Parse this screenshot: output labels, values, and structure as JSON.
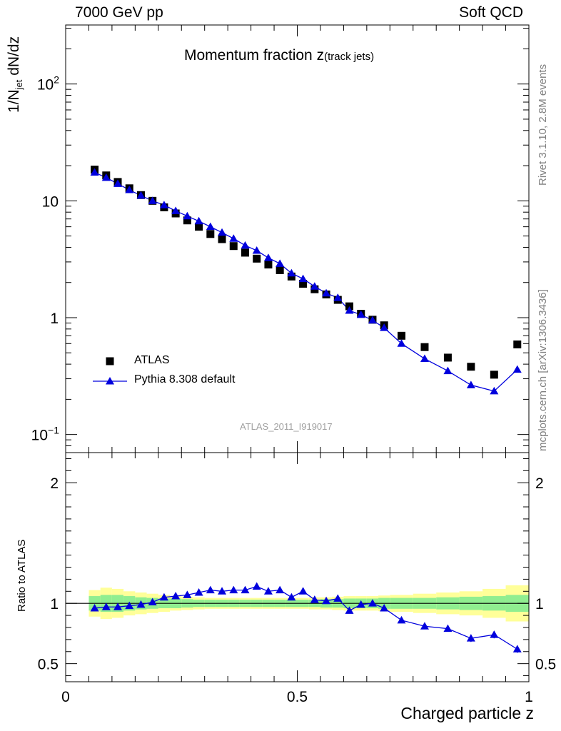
{
  "header": {
    "left": "7000 GeV pp",
    "right": "Soft QCD"
  },
  "side_labels": {
    "rivet": "Rivet 3.1.10,  2.8M events",
    "mcplots": "mcplots.cern.ch [arXiv:1306.3436]"
  },
  "analysis_id": "ATLAS_2011_I919017",
  "chart_data": [
    {
      "type": "scatter",
      "panel": "main",
      "title": "Momentum fraction z",
      "title_sub": "(track jets)",
      "ylabel": "1/N_jet dN/dz",
      "xlabel": "",
      "xlim": [
        0,
        1
      ],
      "ylim": [
        0.07,
        320
      ],
      "yscale": "log",
      "y_tick_labels": [
        "10^-1",
        "1",
        "10",
        "10^2"
      ],
      "legend_placement": "lower-left",
      "x": [
        0.0625,
        0.0875,
        0.1125,
        0.1375,
        0.1625,
        0.1875,
        0.2125,
        0.2375,
        0.2625,
        0.2875,
        0.3125,
        0.3375,
        0.3625,
        0.3875,
        0.4125,
        0.4375,
        0.4625,
        0.4875,
        0.5125,
        0.5375,
        0.5625,
        0.5875,
        0.6125,
        0.6375,
        0.6625,
        0.6875,
        0.725,
        0.775,
        0.825,
        0.875,
        0.925,
        0.975
      ],
      "series": [
        {
          "name": "ATLAS",
          "color": "#000000",
          "marker": "square",
          "values": [
            18.5,
            16.5,
            14.5,
            12.8,
            11.2,
            10.0,
            8.8,
            7.8,
            6.8,
            6.0,
            5.2,
            4.7,
            4.1,
            3.6,
            3.2,
            2.85,
            2.55,
            2.25,
            1.95,
            1.75,
            1.58,
            1.42,
            1.25,
            1.08,
            0.96,
            0.86,
            0.7,
            0.56,
            0.455,
            0.38,
            0.325,
            0.59
          ]
        },
        {
          "name": "Pythia 8.308 default",
          "color": "#0000dd",
          "marker": "triangle",
          "values": [
            17.5,
            15.8,
            14.0,
            12.4,
            11.1,
            10.0,
            9.2,
            8.2,
            7.4,
            6.7,
            6.0,
            5.35,
            4.75,
            4.15,
            3.75,
            3.25,
            2.9,
            2.4,
            2.15,
            1.85,
            1.62,
            1.48,
            1.15,
            1.06,
            0.95,
            0.82,
            0.6,
            0.445,
            0.35,
            0.265,
            0.235,
            0.36
          ]
        }
      ]
    },
    {
      "type": "line",
      "panel": "ratio",
      "ylabel": "Ratio to ATLAS",
      "xlabel": "Charged particle z",
      "xlim": [
        0,
        1
      ],
      "ylim": [
        0.35,
        2.25
      ],
      "x_tick_labels": [
        "0",
        "0.5",
        "1"
      ],
      "y_tick_labels": [
        "0.5",
        "1",
        "2"
      ],
      "x": [
        0.0625,
        0.0875,
        0.1125,
        0.1375,
        0.1625,
        0.1875,
        0.2125,
        0.2375,
        0.2625,
        0.2875,
        0.3125,
        0.3375,
        0.3625,
        0.3875,
        0.4125,
        0.4375,
        0.4625,
        0.4875,
        0.5125,
        0.5375,
        0.5625,
        0.5875,
        0.6125,
        0.6375,
        0.6625,
        0.6875,
        0.725,
        0.775,
        0.825,
        0.875,
        0.925,
        0.975
      ],
      "series": [
        {
          "name": "Pythia 8.308 default",
          "color": "#0000dd",
          "values": [
            0.96,
            0.97,
            0.97,
            0.98,
            0.99,
            1.01,
            1.05,
            1.06,
            1.07,
            1.09,
            1.11,
            1.1,
            1.11,
            1.11,
            1.14,
            1.1,
            1.11,
            1.05,
            1.1,
            1.03,
            1.02,
            1.04,
            0.94,
            0.99,
            1.0,
            0.96,
            0.86,
            0.81,
            0.79,
            0.71,
            0.74,
            0.62
          ],
          "errors": [
            0.01,
            0.01,
            0.01,
            0.01,
            0.01,
            0.01,
            0.01,
            0.01,
            0.01,
            0.01,
            0.01,
            0.01,
            0.01,
            0.01,
            0.01,
            0.01,
            0.01,
            0.01,
            0.01,
            0.015,
            0.015,
            0.015,
            0.02,
            0.02,
            0.02,
            0.02,
            0.02,
            0.025,
            0.025,
            0.03,
            0.03,
            0.03
          ]
        }
      ],
      "bands": {
        "stat_color": "#90ee90",
        "total_color": "#ffff99",
        "x_edges": [
          0.05,
          0.075,
          0.1,
          0.125,
          0.15,
          0.175,
          0.2,
          0.225,
          0.25,
          0.275,
          0.3,
          0.325,
          0.35,
          0.375,
          0.4,
          0.425,
          0.45,
          0.475,
          0.5,
          0.525,
          0.55,
          0.575,
          0.6,
          0.625,
          0.65,
          0.675,
          0.7,
          0.75,
          0.8,
          0.85,
          0.9,
          0.95,
          1.0
        ],
        "stat_half_width": [
          0.06,
          0.07,
          0.07,
          0.06,
          0.05,
          0.045,
          0.04,
          0.04,
          0.035,
          0.03,
          0.03,
          0.03,
          0.03,
          0.03,
          0.03,
          0.03,
          0.03,
          0.03,
          0.03,
          0.03,
          0.035,
          0.035,
          0.04,
          0.04,
          0.04,
          0.045,
          0.045,
          0.045,
          0.05,
          0.055,
          0.06,
          0.07
        ],
        "total_half_width": [
          0.11,
          0.13,
          0.12,
          0.1,
          0.09,
          0.08,
          0.07,
          0.06,
          0.055,
          0.05,
          0.045,
          0.045,
          0.045,
          0.045,
          0.045,
          0.045,
          0.045,
          0.045,
          0.045,
          0.05,
          0.05,
          0.055,
          0.06,
          0.06,
          0.06,
          0.065,
          0.07,
          0.08,
          0.09,
          0.1,
          0.12,
          0.15
        ]
      }
    }
  ]
}
